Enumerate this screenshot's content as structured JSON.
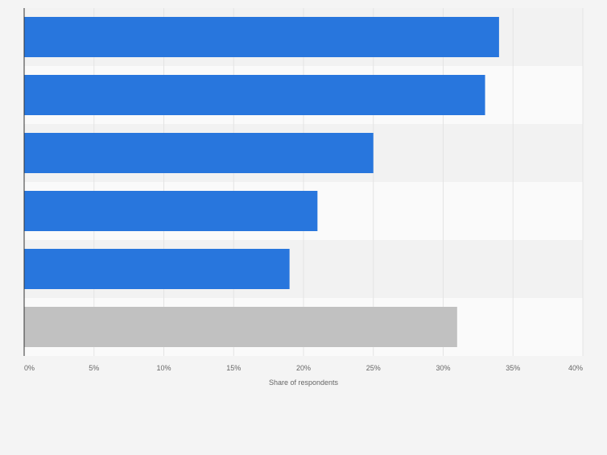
{
  "chart_data": {
    "type": "bar",
    "orientation": "horizontal",
    "xlabel": "Share of respondents",
    "xlim": [
      0,
      40
    ],
    "x_ticks": [
      "0%",
      "5%",
      "10%",
      "15%",
      "20%",
      "25%",
      "30%",
      "35%",
      "40%"
    ],
    "grid": true,
    "series": [
      {
        "values": [
          34,
          33,
          25,
          21,
          19,
          31
        ]
      }
    ],
    "bar_colors": [
      "#2876dd",
      "#2876dd",
      "#2876dd",
      "#2876dd",
      "#2876dd",
      "#c1c1c1"
    ]
  },
  "colors": {
    "background": "#f4f4f4",
    "band_light": "#fafafa",
    "band_dark": "#f2f2f2",
    "gridline": "#e4e4e4",
    "axis": "#333333",
    "tick_text": "#666666"
  }
}
